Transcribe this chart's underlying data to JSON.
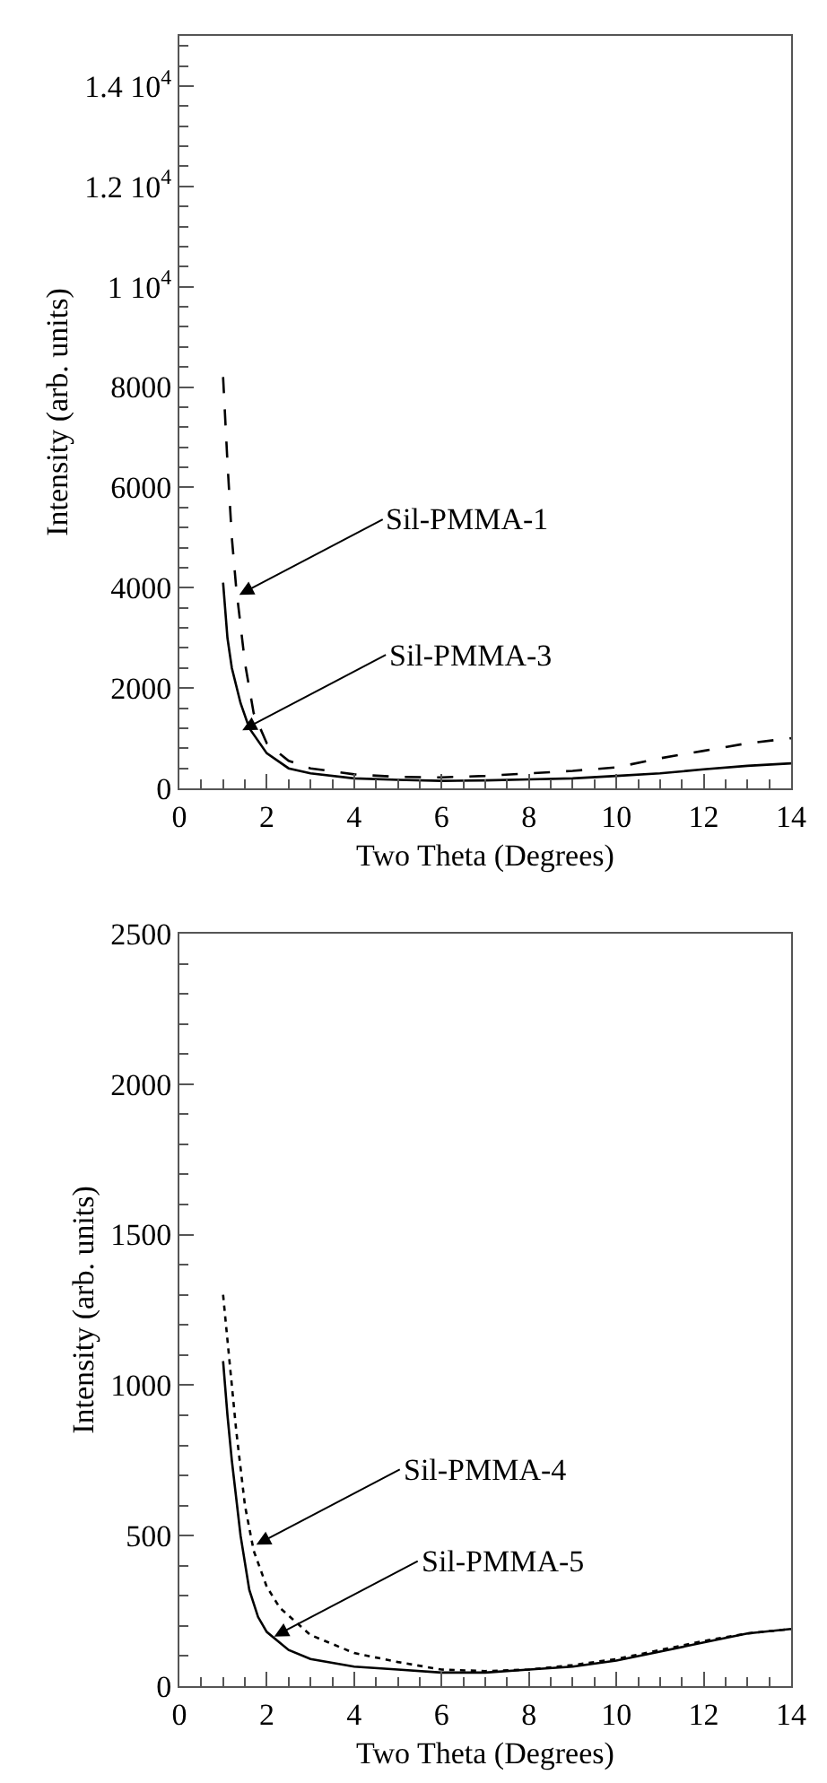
{
  "chart_data": [
    {
      "type": "line",
      "xlabel": "Two Theta (Degrees)",
      "ylabel": "Intensity (arb. units)",
      "xlim": [
        0,
        14
      ],
      "xticks": [
        0,
        2,
        4,
        6,
        8,
        10,
        12,
        14
      ],
      "ylim": [
        0,
        15000
      ],
      "yticks": [
        0,
        2000,
        4000,
        6000,
        8000,
        {
          "value": 10000,
          "label": "1 10$^{4}$"
        },
        {
          "value": 12000,
          "label": "1.2 10$^{4}$"
        },
        {
          "value": 14000,
          "label": "1.4 10$^{4}$"
        }
      ],
      "series": [
        {
          "color": "#000000",
          "line_style": "dashed",
          "x": [
            1,
            1.1,
            1.2,
            1.3,
            1.5,
            1.7,
            2,
            2.5,
            3,
            4,
            5,
            6,
            7,
            8,
            9,
            10,
            11,
            12,
            13,
            14
          ],
          "values": [
            8200,
            6500,
            5000,
            4000,
            2500,
            1500,
            900,
            550,
            400,
            280,
            230,
            220,
            250,
            300,
            350,
            420,
            600,
            750,
            900,
            1000
          ]
        },
        {
          "color": "#000000",
          "line_style": "solid",
          "x": [
            1,
            1.1,
            1.2,
            1.4,
            1.6,
            2,
            2.5,
            3,
            4,
            5,
            6,
            7,
            8,
            9,
            10,
            11,
            12,
            13,
            14
          ],
          "values": [
            4100,
            3000,
            2400,
            1700,
            1200,
            700,
            400,
            300,
            200,
            170,
            150,
            160,
            180,
            200,
            250,
            300,
            380,
            450,
            500
          ]
        }
      ],
      "annotations": [
        {
          "text": "Sil-PMMA-1",
          "x": 1.37,
          "y": 3860
        },
        {
          "text": "Sil-PMMA-3",
          "x": 1.44,
          "y": 1160
        }
      ]
    },
    {
      "type": "line",
      "xlabel": "Two Theta (Degrees)",
      "ylabel": "Intensity (arb. units)",
      "xlim": [
        0,
        14
      ],
      "xticks": [
        0,
        2,
        4,
        6,
        8,
        10,
        12,
        14
      ],
      "ylim": [
        0,
        2500
      ],
      "yticks": [
        0,
        500,
        1000,
        1500,
        2000,
        2500
      ],
      "series": [
        {
          "color": "#000000",
          "line_style": "dotted",
          "x": [
            1,
            1.1,
            1.3,
            1.5,
            1.7,
            2,
            2.3,
            3,
            4,
            5,
            6,
            7,
            8,
            9,
            10,
            11,
            12,
            13,
            14
          ],
          "values": [
            1300,
            1150,
            850,
            600,
            450,
            330,
            260,
            170,
            110,
            80,
            55,
            50,
            55,
            70,
            90,
            120,
            150,
            175,
            190
          ]
        },
        {
          "color": "#000000",
          "line_style": "solid",
          "x": [
            1,
            1.1,
            1.2,
            1.4,
            1.6,
            1.8,
            2,
            2.5,
            3,
            4,
            5,
            6,
            7,
            8,
            9,
            10,
            11,
            12,
            13,
            14
          ],
          "values": [
            1080,
            900,
            750,
            500,
            320,
            230,
            180,
            120,
            90,
            65,
            55,
            45,
            45,
            55,
            65,
            85,
            115,
            145,
            175,
            190
          ]
        }
      ],
      "annotations": [
        {
          "text": "Sil-PMMA-4",
          "x": 1.76,
          "y": 470
        },
        {
          "text": "Sil-PMMA-5",
          "x": 2.17,
          "y": 165
        }
      ]
    }
  ]
}
